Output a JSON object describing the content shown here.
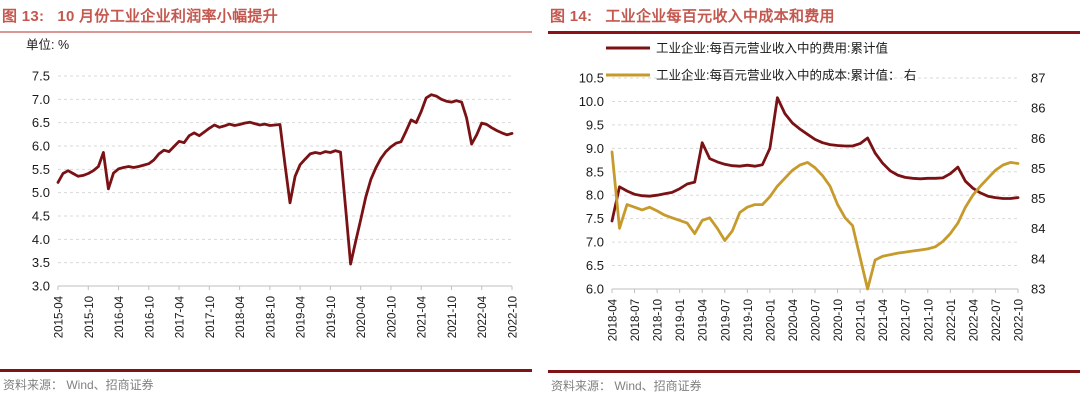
{
  "panels": [
    {
      "figure_label": "图 13:",
      "title": "10 月份工业企业利润率小幅提升",
      "source": "资料来源： Wind、招商证券"
    },
    {
      "figure_label": "图 14:",
      "title": "工业企业每百元收入中成本和费用",
      "source": "资料来源： Wind、招商证券"
    }
  ],
  "colors": {
    "title_accent": "#C4584F",
    "rule_light": "#D99694",
    "rule_dark": "#8C1218",
    "separator": "#7E1416",
    "line_maroon": "#7A1215",
    "line_gold": "#C79A2C",
    "grid": "#DADADA",
    "source_text": "#808080"
  },
  "chart_data": [
    {
      "type": "line",
      "title": "图 13: 10 月份工业企业利润率小幅提升",
      "unit_label": "单位: %",
      "grid": true,
      "ylim": [
        3.0,
        7.5
      ],
      "y_tick_labels": [
        "7.5",
        "7.0",
        "6.5",
        "6.0",
        "5.5",
        "5.0",
        "4.5",
        "4.0",
        "3.5",
        "3.0"
      ],
      "x_tick_labels": [
        "2015-04",
        "2015-10",
        "2016-04",
        "2016-10",
        "2017-04",
        "2017-10",
        "2018-04",
        "2018-10",
        "2019-04",
        "2019-10",
        "2020-04",
        "2020-10",
        "2021-04",
        "2021-10",
        "2022-04",
        "2022-10"
      ],
      "x_range": "monthly 2015-04 to 2022-10",
      "series": [
        {
          "data_name": "profit-margin-line",
          "color": "#7A1215",
          "values": [
            5.22,
            5.41,
            5.47,
            5.41,
            5.35,
            5.37,
            5.41,
            5.47,
            5.56,
            5.86,
            5.08,
            5.42,
            5.51,
            5.54,
            5.56,
            5.54,
            5.56,
            5.59,
            5.62,
            5.7,
            5.83,
            5.91,
            5.88,
            5.99,
            6.1,
            6.07,
            6.22,
            6.28,
            6.22,
            6.3,
            6.38,
            6.45,
            6.4,
            6.43,
            6.47,
            6.44,
            6.46,
            6.49,
            6.51,
            6.48,
            6.45,
            6.47,
            6.44,
            6.45,
            6.46,
            5.6,
            4.78,
            5.35,
            5.6,
            5.72,
            5.83,
            5.86,
            5.84,
            5.88,
            5.86,
            5.9,
            5.87,
            4.7,
            3.47,
            3.95,
            4.42,
            4.9,
            5.28,
            5.53,
            5.73,
            5.88,
            5.98,
            6.06,
            6.09,
            6.32,
            6.56,
            6.5,
            6.74,
            7.03,
            7.1,
            7.07,
            7.0,
            6.96,
            6.94,
            6.97,
            6.94,
            6.6,
            6.04,
            6.24,
            6.49,
            6.46,
            6.39,
            6.33,
            6.28,
            6.24,
            6.27
          ]
        }
      ]
    },
    {
      "type": "line",
      "title": "图 14: 工业企业每百元收入中成本和费用",
      "grid": true,
      "legend_position": "top",
      "left_ylim": [
        6.0,
        10.5
      ],
      "left_y_tick_labels": [
        "10.5",
        "10.0",
        "9.5",
        "9.0",
        "8.5",
        "8.0",
        "7.5",
        "7.0",
        "6.5",
        "6.0"
      ],
      "right_ylim": [
        83,
        87
      ],
      "right_y_tick_labels": [
        "87",
        "86",
        "86",
        "85",
        "85",
        "84",
        "84",
        "83"
      ],
      "x_tick_labels": [
        "2018-04",
        "2018-07",
        "2018-10",
        "2019-01",
        "2019-04",
        "2019-07",
        "2019-10",
        "2020-01",
        "2020-04",
        "2020-07",
        "2020-10",
        "2021-01",
        "2021-04",
        "2021-07",
        "2021-10",
        "2022-01",
        "2022-04",
        "2022-07",
        "2022-10"
      ],
      "x_range": "monthly 2018-04 to 2022-10",
      "series": [
        {
          "name": "工业企业:每百元营业收入中的费用:累计值",
          "data_name": "fee-per-100-revenue-line",
          "axis": "left",
          "color": "#7A1215",
          "values": [
            7.45,
            8.18,
            8.09,
            8.02,
            7.99,
            7.98,
            8.0,
            8.03,
            8.06,
            8.14,
            8.24,
            8.28,
            9.12,
            8.78,
            8.71,
            8.66,
            8.63,
            8.62,
            8.64,
            8.62,
            8.65,
            9.0,
            10.08,
            9.74,
            9.54,
            9.41,
            9.3,
            9.19,
            9.12,
            9.08,
            9.06,
            9.05,
            9.05,
            9.1,
            9.22,
            8.9,
            8.68,
            8.52,
            8.43,
            8.38,
            8.36,
            8.35,
            8.36,
            8.36,
            8.37,
            8.46,
            8.6,
            8.3,
            8.15,
            8.05,
            7.98,
            7.95,
            7.93,
            7.93,
            7.95
          ]
        },
        {
          "name": "工业企业:每百元营业收入中的成本:累计值： 右",
          "data_name": "cost-per-100-revenue-line",
          "axis": "right",
          "color": "#C79A2C",
          "values": [
            85.6,
            84.15,
            84.6,
            84.55,
            84.5,
            84.55,
            84.48,
            84.4,
            84.35,
            84.3,
            84.25,
            84.05,
            84.3,
            84.35,
            84.15,
            83.92,
            84.1,
            84.45,
            84.55,
            84.6,
            84.6,
            84.75,
            84.95,
            85.1,
            85.25,
            85.35,
            85.4,
            85.3,
            85.15,
            84.95,
            84.6,
            84.35,
            84.2,
            83.6,
            83.0,
            83.55,
            83.62,
            83.65,
            83.68,
            83.7,
            83.72,
            83.74,
            83.76,
            83.8,
            83.9,
            84.05,
            84.25,
            84.55,
            84.78,
            84.95,
            85.1,
            85.25,
            85.35,
            85.4,
            85.38
          ]
        }
      ]
    }
  ]
}
